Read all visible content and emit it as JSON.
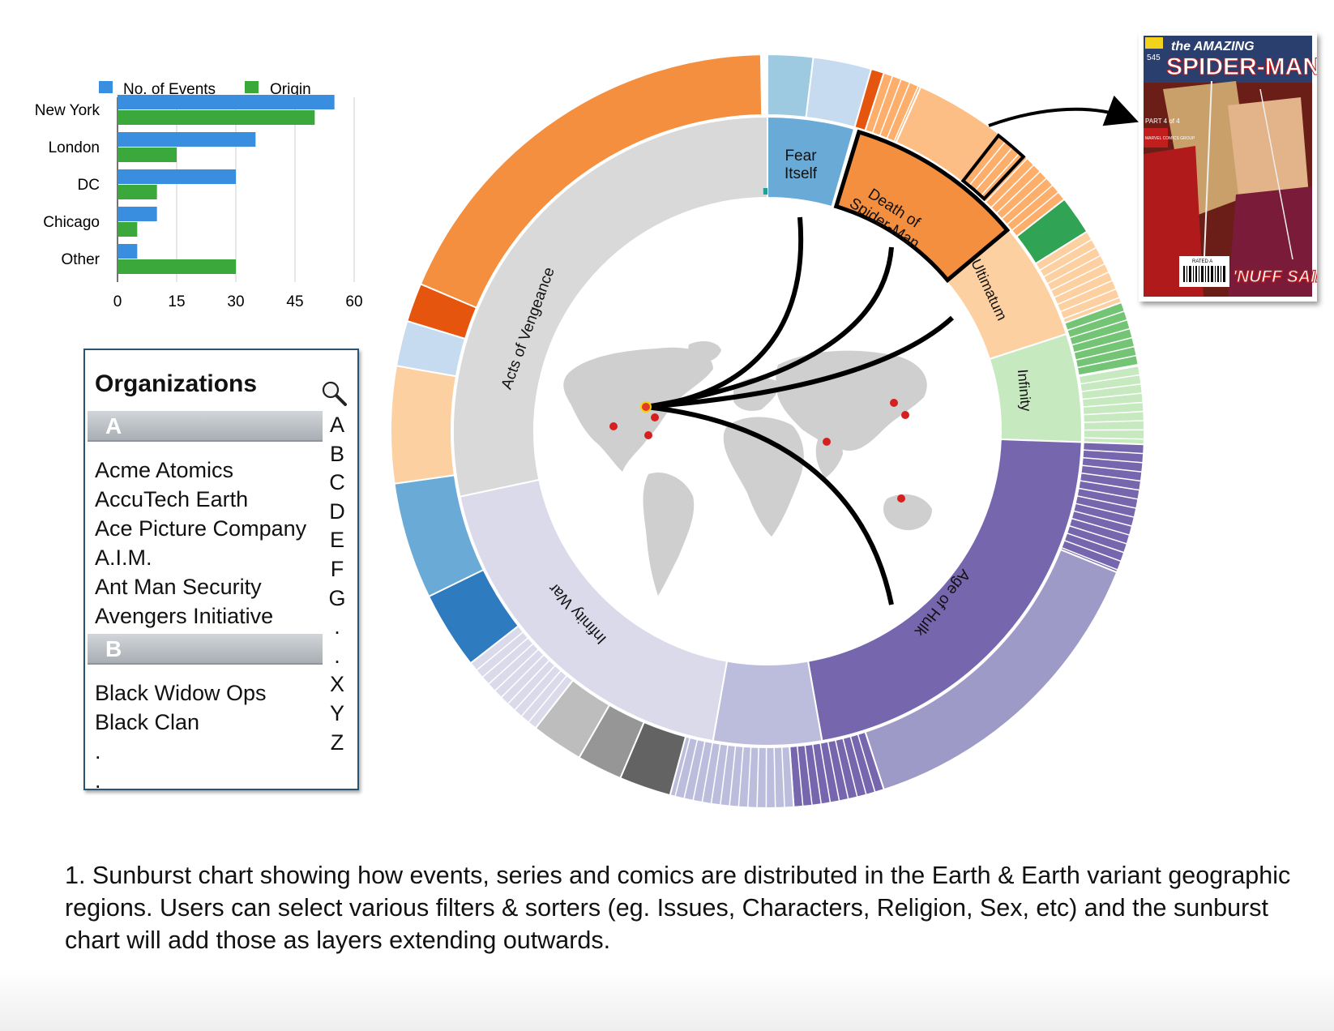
{
  "bar_chart": {
    "legend": [
      {
        "name": "No. of Events",
        "color": "#3a8ee0"
      },
      {
        "name": "Origin",
        "color": "#3aa83a"
      }
    ]
  },
  "chart_data": [
    {
      "type": "bar",
      "orientation": "horizontal",
      "categories": [
        "New York",
        "London",
        "DC",
        "Chicago",
        "Other"
      ],
      "series": [
        {
          "name": "No. of Events",
          "values": [
            55,
            35,
            30,
            10,
            5
          ],
          "color": "#3a8ee0"
        },
        {
          "name": "Origin",
          "values": [
            50,
            15,
            10,
            5,
            30
          ],
          "color": "#3aa83a"
        }
      ],
      "xticks": [
        0,
        15,
        30,
        45,
        60
      ],
      "xlim": [
        0,
        60
      ],
      "grid": true,
      "legend": "top"
    },
    {
      "type": "sunburst",
      "segments": [
        {
          "label": "Fear Itself",
          "start": 0,
          "end": 16,
          "color": "#6aaad6"
        },
        {
          "label": "Death of Spider-Man",
          "start": 17,
          "end": 50,
          "color": "#f48f40"
        },
        {
          "label": "Ultimatum",
          "start": 50,
          "end": 72,
          "color": "#fdd0a2"
        },
        {
          "label": "Infinity",
          "start": 72,
          "end": 92,
          "color": "#c7e9c0"
        },
        {
          "label": "Age of Hulk",
          "start": 92,
          "end": 195,
          "color": "#fff"
        },
        {
          "label": "Infinity War",
          "start": 195,
          "end": 258,
          "color": "#dadaeb"
        },
        {
          "label": "Acts of Vengeance",
          "start": 258,
          "end": 360,
          "color": "#d9d9d9"
        }
      ]
    }
  ],
  "organizations": {
    "title": "Organizations",
    "search_icon": "magnifier-icon",
    "sections": [
      {
        "letter": "A",
        "items": [
          "Acme Atomics",
          "AccuTech Earth",
          "Ace Picture Company",
          "A.I.M.",
          "Ant Man Security",
          "Avengers Initiative"
        ]
      },
      {
        "letter": "B",
        "items": [
          "Black Widow Ops",
          "Black Clan",
          ".",
          "."
        ]
      }
    ],
    "index": [
      "A",
      "B",
      "C",
      "D",
      "E",
      "F",
      "G",
      ".",
      ".",
      "X",
      "Y",
      "Z"
    ]
  },
  "comic": {
    "top_title": "the AMAZING",
    "title": "SPIDER-MAN",
    "issue": "545",
    "part": "PART 4 of 4",
    "publisher": "MARVEL COMICS GROUP",
    "rating": "RATED A",
    "tagline": "'NUFF SAID!"
  },
  "caption": "1. Sunburst chart showing how events, series and comics are distributed in the Earth & Earth variant geographic regions. Users can select various filters & sorters (eg. Issues, Characters, Religion, Sex, etc) and the sunburst chart will add those as layers extending outwards."
}
